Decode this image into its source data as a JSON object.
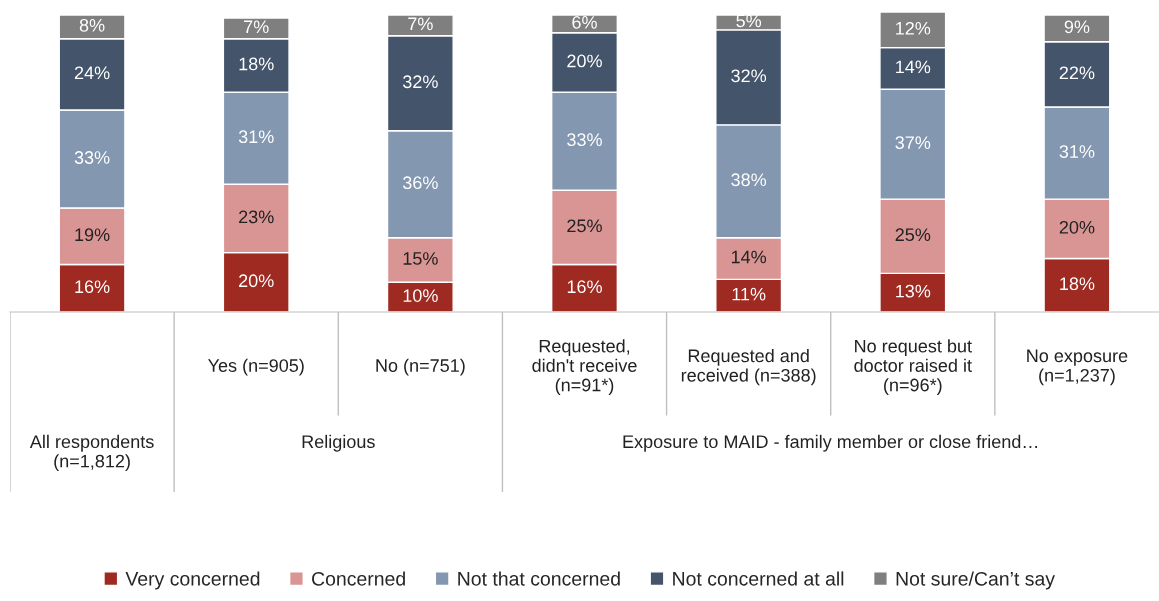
{
  "chart_data": {
    "type": "bar",
    "stacked": true,
    "data_labels": false,
    "legend": "bottom",
    "categories": [
      null,
      "Yes (n=905)",
      "No (n=751)",
      "Requested,\ndidn't receive\n(n=91*)",
      "Requested and\nreceived (n=388)",
      "No request but\ndoctor raised it\n(n=96*)",
      "No exposure\n(n=1,237)"
    ],
    "annotations": [
      "All respondents\n(n=1,812)",
      "Religious",
      "Exposure to MAID - family member or close friend…"
    ],
    "series": [
      {
        "name": "Very concerned",
        "color": "#9e2a22",
        "values": [
          16,
          20,
          10,
          16,
          11,
          13,
          18
        ],
        "value_labels": [
          "16%",
          "20%",
          "10%",
          "16%",
          "11%",
          "13%",
          "18%"
        ]
      },
      {
        "name": "Concerned",
        "color": "#d99594",
        "values": [
          19,
          23,
          15,
          25,
          14,
          25,
          20
        ],
        "value_labels": [
          "19%",
          "23%",
          "15%",
          "25%",
          "14%",
          "25%",
          "20%"
        ]
      },
      {
        "name": "Not that concerned",
        "color": "#8497b0",
        "values": [
          33,
          31,
          36,
          33,
          38,
          37,
          31
        ],
        "value_labels": [
          "33%",
          "31%",
          "36%",
          "33%",
          "38%",
          "37%",
          "31%"
        ]
      },
      {
        "name": "Not concerned at all",
        "color": "#44546a",
        "values": [
          24,
          18,
          32,
          20,
          32,
          14,
          22
        ],
        "value_labels": [
          "24%",
          "18%",
          "32%",
          "20%",
          "32%",
          "14%",
          "22%"
        ]
      },
      {
        "name": "Not sure/Can’t say",
        "color": "#7f7f7f",
        "values": [
          8,
          7,
          7,
          6,
          5,
          12,
          9
        ],
        "value_labels": [
          "8%",
          "7%",
          "7%",
          "6%",
          "5%",
          "12%",
          "9%"
        ]
      }
    ]
  }
}
